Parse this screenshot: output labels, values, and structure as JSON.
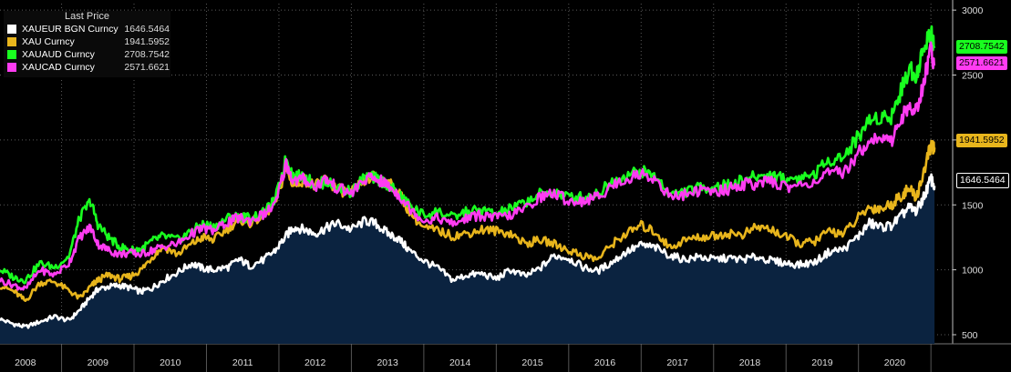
{
  "chart_data": {
    "type": "line",
    "title": "Last Price",
    "xlabel": "",
    "ylabel": "",
    "ylim": [
      430,
      3050
    ],
    "xlim": [
      2007.65,
      2020.8
    ],
    "grid": true,
    "legend_position": "top-left",
    "y_ticks": [
      {
        "value": 500,
        "label": "500"
      },
      {
        "value": 1000,
        "label": "1000"
      },
      {
        "value": 1500,
        "label": "1500"
      },
      {
        "value": 2000,
        "label": "2000"
      },
      {
        "value": 2500,
        "label": "2500"
      },
      {
        "value": 3000,
        "label": "3000"
      }
    ],
    "x_ticks": [
      {
        "value": 2008,
        "label": "2008"
      },
      {
        "value": 2009,
        "label": "2009"
      },
      {
        "value": 2010,
        "label": "2010"
      },
      {
        "value": 2011,
        "label": "2011"
      },
      {
        "value": 2012,
        "label": "2012"
      },
      {
        "value": 2013,
        "label": "2013"
      },
      {
        "value": 2014,
        "label": "2014"
      },
      {
        "value": 2015,
        "label": "2015"
      },
      {
        "value": 2016,
        "label": "2016"
      },
      {
        "value": 2017,
        "label": "2017"
      },
      {
        "value": 2018,
        "label": "2018"
      },
      {
        "value": 2019,
        "label": "2019"
      },
      {
        "value": 2020,
        "label": "2020"
      }
    ],
    "series": [
      {
        "name": "XAUEUR BGN Curncy",
        "last": "1646.5464",
        "tag": "1646.5464",
        "color": "#ffffff",
        "tag_bg": "#000000",
        "tag_fg": "#ffffff",
        "area": true,
        "x": [
          2007.65,
          2007.85,
          2008.0,
          2008.2,
          2008.4,
          2008.6,
          2008.75,
          2008.9,
          2009.0,
          2009.15,
          2009.3,
          2009.45,
          2009.6,
          2009.75,
          2009.9,
          2010.1,
          2010.3,
          2010.45,
          2010.6,
          2010.8,
          2010.95,
          2011.1,
          2011.3,
          2011.45,
          2011.6,
          2011.7,
          2011.85,
          2012.0,
          2012.15,
          2012.3,
          2012.5,
          2012.7,
          2012.85,
          2013.0,
          2013.15,
          2013.3,
          2013.5,
          2013.7,
          2013.9,
          2014.1,
          2014.3,
          2014.5,
          2014.7,
          2014.9,
          2015.1,
          2015.3,
          2015.5,
          2015.7,
          2015.9,
          2016.1,
          2016.3,
          2016.5,
          2016.7,
          2016.9,
          2017.1,
          2017.3,
          2017.5,
          2017.7,
          2017.9,
          2018.1,
          2018.3,
          2018.5,
          2018.7,
          2018.9,
          2019.1,
          2019.3,
          2019.5,
          2019.65,
          2019.8,
          2019.95,
          2020.1,
          2020.2,
          2020.3,
          2020.4,
          2020.5,
          2020.55
        ],
        "y": [
          620,
          580,
          560,
          600,
          640,
          610,
          690,
          790,
          850,
          870,
          880,
          860,
          830,
          860,
          920,
          980,
          1050,
          1010,
          1000,
          1020,
          1080,
          1030,
          1080,
          1150,
          1260,
          1330,
          1310,
          1280,
          1320,
          1360,
          1310,
          1380,
          1350,
          1280,
          1240,
          1150,
          1070,
          1010,
          920,
          960,
          970,
          930,
          1000,
          950,
          1010,
          1110,
          1090,
          1020,
          990,
          1060,
          1140,
          1190,
          1170,
          1110,
          1080,
          1100,
          1080,
          1090,
          1080,
          1100,
          1070,
          1050,
          1040,
          1060,
          1140,
          1160,
          1260,
          1360,
          1330,
          1340,
          1420,
          1480,
          1450,
          1560,
          1700,
          1646
        ]
      },
      {
        "name": "XAU Curncy",
        "last": "1941.5952",
        "tag": "1941.5952",
        "color": "#e8b51c",
        "tag_bg": "#e8b51c",
        "tag_fg": "#000000",
        "area": false,
        "x": [
          2007.65,
          2007.85,
          2008.0,
          2008.2,
          2008.4,
          2008.6,
          2008.75,
          2008.9,
          2009.0,
          2009.15,
          2009.3,
          2009.45,
          2009.6,
          2009.75,
          2009.9,
          2010.1,
          2010.3,
          2010.45,
          2010.6,
          2010.8,
          2010.95,
          2011.1,
          2011.3,
          2011.45,
          2011.6,
          2011.7,
          2011.85,
          2012.0,
          2012.15,
          2012.3,
          2012.5,
          2012.7,
          2012.85,
          2013.0,
          2013.15,
          2013.3,
          2013.5,
          2013.7,
          2013.9,
          2014.1,
          2014.3,
          2014.5,
          2014.7,
          2014.9,
          2015.1,
          2015.3,
          2015.5,
          2015.7,
          2015.9,
          2016.1,
          2016.3,
          2016.5,
          2016.7,
          2016.9,
          2017.1,
          2017.3,
          2017.5,
          2017.7,
          2017.9,
          2018.1,
          2018.3,
          2018.5,
          2018.7,
          2018.9,
          2019.1,
          2019.3,
          2019.5,
          2019.65,
          2019.8,
          2019.95,
          2020.1,
          2020.2,
          2020.3,
          2020.4,
          2020.5,
          2020.55
        ],
        "y": [
          880,
          830,
          760,
          900,
          910,
          840,
          780,
          870,
          920,
          960,
          930,
          950,
          1000,
          1100,
          1180,
          1120,
          1200,
          1250,
          1230,
          1320,
          1390,
          1360,
          1420,
          1520,
          1780,
          1650,
          1700,
          1640,
          1700,
          1620,
          1590,
          1700,
          1720,
          1670,
          1600,
          1450,
          1320,
          1300,
          1260,
          1280,
          1310,
          1300,
          1280,
          1200,
          1230,
          1200,
          1150,
          1110,
          1080,
          1200,
          1280,
          1340,
          1290,
          1170,
          1230,
          1250,
          1260,
          1280,
          1270,
          1330,
          1310,
          1250,
          1200,
          1220,
          1300,
          1280,
          1400,
          1480,
          1470,
          1500,
          1580,
          1620,
          1560,
          1750,
          1960,
          1941
        ]
      },
      {
        "name": "XAUAUD Curncy",
        "last": "2708.7542",
        "tag": "2708.7542",
        "color": "#19ff1f",
        "tag_bg": "#19ff1f",
        "tag_fg": "#000000",
        "area": false,
        "x": [
          2007.65,
          2007.85,
          2008.0,
          2008.2,
          2008.4,
          2008.6,
          2008.75,
          2008.9,
          2009.0,
          2009.15,
          2009.3,
          2009.45,
          2009.6,
          2009.75,
          2009.9,
          2010.1,
          2010.3,
          2010.45,
          2010.6,
          2010.8,
          2010.95,
          2011.1,
          2011.3,
          2011.45,
          2011.6,
          2011.7,
          2011.85,
          2012.0,
          2012.15,
          2012.3,
          2012.5,
          2012.7,
          2012.85,
          2013.0,
          2013.15,
          2013.3,
          2013.5,
          2013.7,
          2013.9,
          2014.1,
          2014.3,
          2014.5,
          2014.7,
          2014.9,
          2015.1,
          2015.3,
          2015.5,
          2015.7,
          2015.9,
          2016.1,
          2016.3,
          2016.5,
          2016.7,
          2016.9,
          2017.1,
          2017.3,
          2017.5,
          2017.7,
          2017.9,
          2018.1,
          2018.3,
          2018.5,
          2018.7,
          2018.9,
          2019.1,
          2019.3,
          2019.5,
          2019.65,
          2019.8,
          2019.95,
          2020.1,
          2020.2,
          2020.3,
          2020.4,
          2020.5,
          2020.55
        ],
        "y": [
          1000,
          940,
          920,
          1050,
          1020,
          1100,
          1400,
          1530,
          1350,
          1250,
          1180,
          1150,
          1160,
          1220,
          1260,
          1230,
          1300,
          1350,
          1330,
          1400,
          1410,
          1400,
          1440,
          1540,
          1860,
          1720,
          1720,
          1650,
          1680,
          1630,
          1600,
          1720,
          1700,
          1660,
          1580,
          1500,
          1420,
          1450,
          1400,
          1450,
          1460,
          1430,
          1470,
          1520,
          1580,
          1600,
          1560,
          1560,
          1590,
          1680,
          1730,
          1760,
          1720,
          1580,
          1600,
          1630,
          1640,
          1650,
          1690,
          1720,
          1730,
          1700,
          1710,
          1740,
          1850,
          1870,
          2030,
          2150,
          2180,
          2180,
          2400,
          2550,
          2500,
          2700,
          2850,
          2708
        ]
      },
      {
        "name": "XAUCAD Curncy",
        "last": "2571.6621",
        "tag": "2571.6621",
        "color": "#ff3cf2",
        "tag_bg": "#ff3cf2",
        "tag_fg": "#000000",
        "area": false,
        "x": [
          2007.65,
          2007.85,
          2008.0,
          2008.2,
          2008.4,
          2008.6,
          2008.75,
          2008.9,
          2009.0,
          2009.15,
          2009.3,
          2009.45,
          2009.6,
          2009.75,
          2009.9,
          2010.1,
          2010.3,
          2010.45,
          2010.6,
          2010.8,
          2010.95,
          2011.1,
          2011.3,
          2011.45,
          2011.6,
          2011.7,
          2011.85,
          2012.0,
          2012.15,
          2012.3,
          2012.5,
          2012.7,
          2012.85,
          2013.0,
          2013.15,
          2013.3,
          2013.5,
          2013.7,
          2013.9,
          2014.1,
          2014.3,
          2014.5,
          2014.7,
          2014.9,
          2015.1,
          2015.3,
          2015.5,
          2015.7,
          2015.9,
          2016.1,
          2016.3,
          2016.5,
          2016.7,
          2016.9,
          2017.1,
          2017.3,
          2017.5,
          2017.7,
          2017.9,
          2018.1,
          2018.3,
          2018.5,
          2018.7,
          2018.9,
          2019.1,
          2019.3,
          2019.5,
          2019.65,
          2019.8,
          2019.95,
          2020.1,
          2020.2,
          2020.3,
          2020.4,
          2020.5,
          2020.55
        ],
        "y": [
          920,
          880,
          850,
          1000,
          960,
          1050,
          1250,
          1330,
          1200,
          1150,
          1120,
          1130,
          1120,
          1150,
          1180,
          1200,
          1280,
          1320,
          1300,
          1370,
          1400,
          1380,
          1430,
          1500,
          1820,
          1680,
          1700,
          1640,
          1700,
          1630,
          1590,
          1700,
          1700,
          1650,
          1580,
          1480,
          1380,
          1400,
          1350,
          1400,
          1420,
          1400,
          1420,
          1470,
          1560,
          1590,
          1530,
          1530,
          1560,
          1650,
          1700,
          1740,
          1700,
          1560,
          1580,
          1610,
          1600,
          1620,
          1660,
          1660,
          1680,
          1640,
          1650,
          1680,
          1740,
          1750,
          1900,
          2000,
          2010,
          1990,
          2180,
          2250,
          2220,
          2450,
          2700,
          2571
        ]
      }
    ]
  }
}
